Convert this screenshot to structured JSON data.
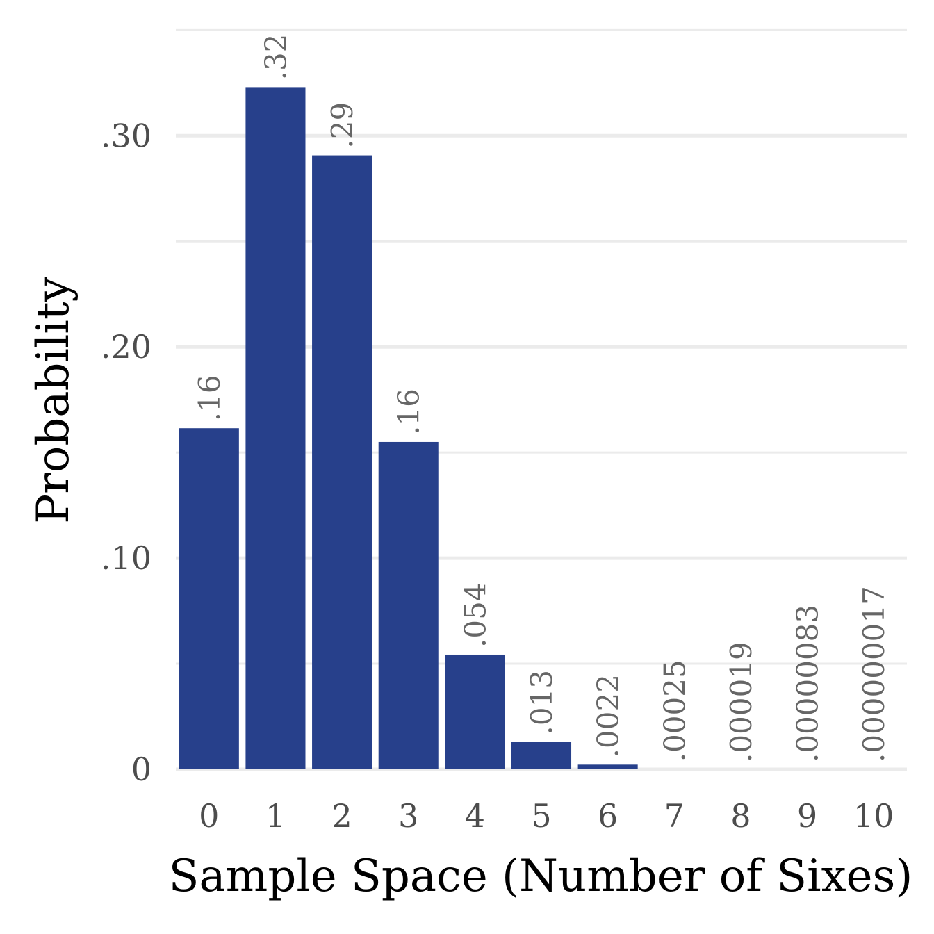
{
  "chart_data": {
    "type": "bar",
    "categories": [
      "0",
      "1",
      "2",
      "3",
      "4",
      "5",
      "6",
      "7",
      "8",
      "9",
      "10"
    ],
    "values": [
      0.1615,
      0.323,
      0.2907,
      0.155,
      0.0543,
      0.013,
      0.0022,
      0.00025,
      1.9e-05,
      8.3e-07,
      1.7e-08
    ],
    "data_labels": [
      ".16",
      ".32",
      ".29",
      ".16",
      ".054",
      ".013",
      ".0022",
      ".00025",
      ".000019",
      ".00000083",
      ".000000017"
    ],
    "xlabel": "Sample Space (Number of Sixes)",
    "ylabel": "Probability",
    "ylim": [
      0,
      0.35
    ],
    "y_ticks": [
      {
        "value": 0,
        "label": "0"
      },
      {
        "value": 0.1,
        "label": ".10"
      },
      {
        "value": 0.2,
        "label": ".20"
      },
      {
        "value": 0.3,
        "label": ".30"
      }
    ],
    "y_minor_ticks": [
      0.05,
      0.15,
      0.25,
      0.35
    ],
    "grid": true,
    "bar_color": "#27408b",
    "legend": "none"
  }
}
